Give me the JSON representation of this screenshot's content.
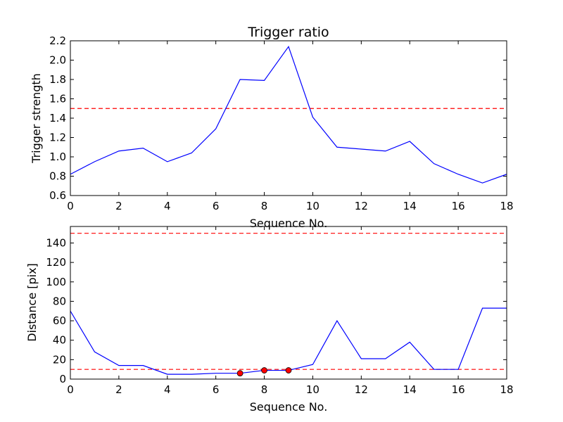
{
  "chart_data": [
    {
      "type": "line",
      "title": "Trigger ratio",
      "xlabel": "Sequence No.",
      "ylabel": "Trigger strength",
      "xlim": [
        0,
        18
      ],
      "ylim": [
        0.6,
        2.2
      ],
      "xticks": [
        "0",
        "2",
        "4",
        "6",
        "8",
        "10",
        "12",
        "14",
        "16",
        "18"
      ],
      "yticks": [
        "0.6",
        "0.8",
        "1.0",
        "1.2",
        "1.4",
        "1.6",
        "1.8",
        "2.0",
        "2.2"
      ],
      "grid": false,
      "series": [
        {
          "color": "#0000ff",
          "x": [
            0,
            1,
            2,
            3,
            4,
            5,
            6,
            7,
            8,
            9,
            10,
            11,
            12,
            13,
            14,
            15,
            16,
            17,
            18
          ],
          "values": [
            0.82,
            0.95,
            1.06,
            1.09,
            0.95,
            1.04,
            1.29,
            1.8,
            1.79,
            2.14,
            1.41,
            1.1,
            1.08,
            1.06,
            1.16,
            0.93,
            0.82,
            0.73,
            0.82
          ]
        }
      ],
      "threshold_lines": [
        {
          "y": 1.5,
          "color": "#ff0000",
          "style": "dashed"
        }
      ]
    },
    {
      "type": "line",
      "title": "",
      "xlabel": "Sequence No.",
      "ylabel": "Distance [pix]",
      "xlim": [
        0,
        18
      ],
      "ylim": [
        0,
        157
      ],
      "xticks": [
        "0",
        "2",
        "4",
        "6",
        "8",
        "10",
        "12",
        "14",
        "16",
        "18"
      ],
      "yticks": [
        "0",
        "20",
        "40",
        "60",
        "80",
        "100",
        "120",
        "140"
      ],
      "grid": false,
      "series": [
        {
          "color": "#0000ff",
          "x": [
            0,
            1,
            2,
            3,
            4,
            5,
            6,
            7,
            8,
            9,
            10,
            11,
            12,
            13,
            14,
            15,
            16,
            17,
            18
          ],
          "values": [
            70,
            28,
            14,
            14,
            5,
            5,
            6,
            6,
            9,
            9,
            15,
            60,
            21,
            21,
            38,
            10,
            10,
            73,
            73
          ]
        }
      ],
      "markers": {
        "color": "#ff0000",
        "x": [
          7,
          8,
          9
        ],
        "values": [
          6,
          9,
          9
        ]
      },
      "threshold_lines": [
        {
          "y": 150,
          "color": "#ff0000",
          "style": "dashed"
        },
        {
          "y": 10,
          "color": "#ff0000",
          "style": "dashed"
        }
      ]
    }
  ]
}
